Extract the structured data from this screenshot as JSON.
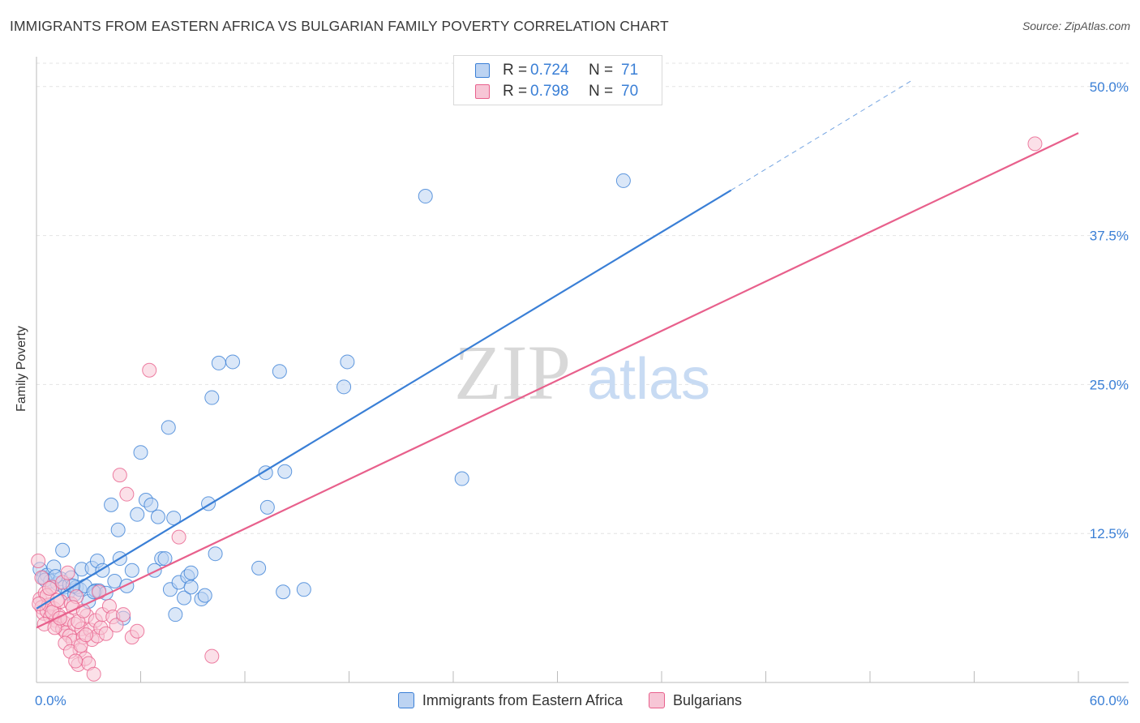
{
  "title": "IMMIGRANTS FROM EASTERN AFRICA VS BULGARIAN FAMILY POVERTY CORRELATION CHART",
  "source": "Source: ZipAtlas.com",
  "colors": {
    "blue": "#3a7fd6",
    "blue_fill": "#bcd3f2",
    "pink": "#e8608c",
    "pink_fill": "#f7c6d6",
    "grid": "#e4e4e4",
    "tick_text": "#3a7fd6"
  },
  "legend": {
    "rows": [
      {
        "r_label": "R =",
        "r_value": "0.724",
        "n_label": "N =",
        "n_value": "71"
      },
      {
        "r_label": "R =",
        "r_value": "0.798",
        "n_label": "N =",
        "n_value": "70"
      }
    ]
  },
  "bottom_legend": {
    "series_a": "Immigrants from Eastern Africa",
    "series_b": "Bulgarians"
  },
  "watermark": {
    "zip": "ZIP",
    "atlas": "atlas"
  },
  "chart_data": {
    "type": "scatter",
    "title": "IMMIGRANTS FROM EASTERN AFRICA VS BULGARIAN FAMILY POVERTY CORRELATION CHART",
    "xlabel": "",
    "ylabel": "Family Poverty",
    "xlim": [
      0,
      60
    ],
    "ylim": [
      0,
      52.5
    ],
    "x_tick_labels": [
      {
        "value": 0,
        "label": "0.0%"
      },
      {
        "value": 60,
        "label": "60.0%"
      }
    ],
    "y_tick_labels": [
      {
        "value": 12.5,
        "label": "12.5%"
      },
      {
        "value": 25,
        "label": "25.0%"
      },
      {
        "value": 37.5,
        "label": "37.5%"
      },
      {
        "value": 50,
        "label": "50.0%"
      }
    ],
    "x_minor_ticks": [
      0,
      6,
      12,
      18,
      24,
      30,
      36,
      42,
      48,
      54,
      60
    ],
    "series": [
      {
        "name": "Immigrants from Eastern Africa",
        "color": "#3a7fd6",
        "fill": "#bcd3f2",
        "R": 0.724,
        "N": 71,
        "trend": {
          "x0": 0,
          "y0": 6.2,
          "x1": 40,
          "y1": 41.3,
          "dash_to_x": 50.4,
          "dash_to_y": 50.5
        },
        "points": [
          [
            0.2,
            9.5
          ],
          [
            0.4,
            8.8
          ],
          [
            0.6,
            9.0
          ],
          [
            0.8,
            8.5
          ],
          [
            1.0,
            9.7
          ],
          [
            1.2,
            8.3
          ],
          [
            1.4,
            8.7
          ],
          [
            1.5,
            11.1
          ],
          [
            1.6,
            8.0
          ],
          [
            1.8,
            7.5
          ],
          [
            1.9,
            8.2
          ],
          [
            2.0,
            8.8
          ],
          [
            2.2,
            7.4
          ],
          [
            2.3,
            8.0
          ],
          [
            2.5,
            7.8
          ],
          [
            2.6,
            9.5
          ],
          [
            2.8,
            8.1
          ],
          [
            3.0,
            6.8
          ],
          [
            3.2,
            9.6
          ],
          [
            3.4,
            7.7
          ],
          [
            3.5,
            10.2
          ],
          [
            3.6,
            7.7
          ],
          [
            3.8,
            9.4
          ],
          [
            4.0,
            7.5
          ],
          [
            4.3,
            14.9
          ],
          [
            4.5,
            8.5
          ],
          [
            4.7,
            12.8
          ],
          [
            4.8,
            10.4
          ],
          [
            5.0,
            5.4
          ],
          [
            5.2,
            8.1
          ],
          [
            5.5,
            9.4
          ],
          [
            5.8,
            14.1
          ],
          [
            6.0,
            19.3
          ],
          [
            6.3,
            15.3
          ],
          [
            6.6,
            14.9
          ],
          [
            6.8,
            9.4
          ],
          [
            7.0,
            13.9
          ],
          [
            7.2,
            10.4
          ],
          [
            7.4,
            10.4
          ],
          [
            7.6,
            21.4
          ],
          [
            7.7,
            7.8
          ],
          [
            7.9,
            13.8
          ],
          [
            8.0,
            5.7
          ],
          [
            8.2,
            8.4
          ],
          [
            8.5,
            7.1
          ],
          [
            8.7,
            8.9
          ],
          [
            8.9,
            8.0
          ],
          [
            8.9,
            9.2
          ],
          [
            9.5,
            7.0
          ],
          [
            9.7,
            7.3
          ],
          [
            9.9,
            15.0
          ],
          [
            10.1,
            23.9
          ],
          [
            10.3,
            10.8
          ],
          [
            10.5,
            26.8
          ],
          [
            11.3,
            26.9
          ],
          [
            12.8,
            9.6
          ],
          [
            13.2,
            17.6
          ],
          [
            13.3,
            14.7
          ],
          [
            14.0,
            26.1
          ],
          [
            14.2,
            7.6
          ],
          [
            14.3,
            17.7
          ],
          [
            15.4,
            7.8
          ],
          [
            17.7,
            24.8
          ],
          [
            17.9,
            26.9
          ],
          [
            22.4,
            40.8
          ],
          [
            24.5,
            17.1
          ],
          [
            33.8,
            42.1
          ],
          [
            2.1,
            8.1
          ],
          [
            3.3,
            7.6
          ],
          [
            0.5,
            8.6
          ],
          [
            1.1,
            8.9
          ]
        ]
      },
      {
        "name": "Bulgarians",
        "color": "#e8608c",
        "fill": "#f7c6d6",
        "R": 0.798,
        "N": 70,
        "trend": {
          "x0": 0,
          "y0": 4.6,
          "x1": 60,
          "y1": 46.1
        },
        "points": [
          [
            0.1,
            10.2
          ],
          [
            0.2,
            7.0
          ],
          [
            0.3,
            6.3
          ],
          [
            0.4,
            5.8
          ],
          [
            0.5,
            7.5
          ],
          [
            0.6,
            6.0
          ],
          [
            0.7,
            6.5
          ],
          [
            0.8,
            5.5
          ],
          [
            0.9,
            8.0
          ],
          [
            1.0,
            6.2
          ],
          [
            1.1,
            5.2
          ],
          [
            1.2,
            4.8
          ],
          [
            1.3,
            5.6
          ],
          [
            1.4,
            6.8
          ],
          [
            1.5,
            4.5
          ],
          [
            1.6,
            5.0
          ],
          [
            1.7,
            4.2
          ],
          [
            1.8,
            5.3
          ],
          [
            1.9,
            3.9
          ],
          [
            2.0,
            6.6
          ],
          [
            2.1,
            3.5
          ],
          [
            2.2,
            4.9
          ],
          [
            2.3,
            7.2
          ],
          [
            2.4,
            1.5
          ],
          [
            2.5,
            2.7
          ],
          [
            2.6,
            4.5
          ],
          [
            2.7,
            3.8
          ],
          [
            2.8,
            2.0
          ],
          [
            2.9,
            5.6
          ],
          [
            3.0,
            1.6
          ],
          [
            3.1,
            4.4
          ],
          [
            3.2,
            3.6
          ],
          [
            3.3,
            0.7
          ],
          [
            3.4,
            5.2
          ],
          [
            3.5,
            3.9
          ],
          [
            3.6,
            7.6
          ],
          [
            3.7,
            4.6
          ],
          [
            3.8,
            5.7
          ],
          [
            4.0,
            4.1
          ],
          [
            4.2,
            6.4
          ],
          [
            4.4,
            5.5
          ],
          [
            4.6,
            4.8
          ],
          [
            4.8,
            17.4
          ],
          [
            5.0,
            5.7
          ],
          [
            5.2,
            15.8
          ],
          [
            5.5,
            3.8
          ],
          [
            5.8,
            4.3
          ],
          [
            6.5,
            26.2
          ],
          [
            8.2,
            12.2
          ],
          [
            10.1,
            2.2
          ],
          [
            57.5,
            45.2
          ],
          [
            0.3,
            8.8
          ],
          [
            0.6,
            7.3
          ],
          [
            0.9,
            5.9
          ],
          [
            1.2,
            6.9
          ],
          [
            1.5,
            8.4
          ],
          [
            1.8,
            9.2
          ],
          [
            2.1,
            6.3
          ],
          [
            2.4,
            5.1
          ],
          [
            2.7,
            6.0
          ],
          [
            0.15,
            6.6
          ],
          [
            0.45,
            4.9
          ],
          [
            0.75,
            7.9
          ],
          [
            1.05,
            4.6
          ],
          [
            1.35,
            5.4
          ],
          [
            1.65,
            3.3
          ],
          [
            1.95,
            2.6
          ],
          [
            2.25,
            1.8
          ],
          [
            2.55,
            3.1
          ],
          [
            2.85,
            4.0
          ]
        ]
      }
    ]
  }
}
